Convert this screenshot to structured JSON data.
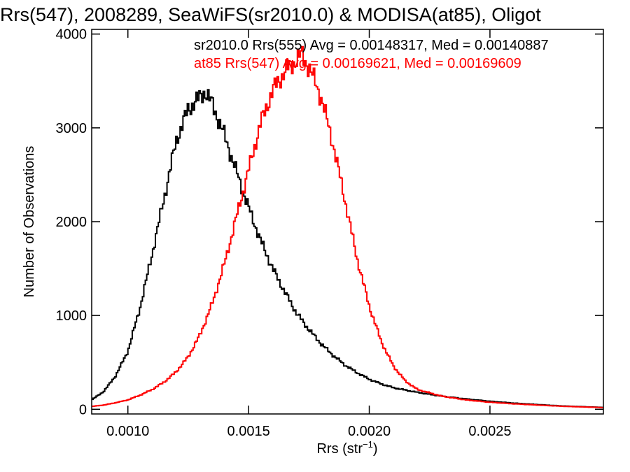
{
  "chart_data": {
    "type": "histogram",
    "title": "Rrs(547), 2008289, SeaWiFS(sr2010.0) & MODISA(at85), Oligot",
    "xlabel_main": "Rrs (str",
    "xlabel_sup": "−1",
    "xlabel_end": ")",
    "ylabel": "Number of Observations",
    "xlim": [
      0.00085,
      0.00297
    ],
    "ylim": [
      -50,
      4050
    ],
    "xticks": [
      {
        "v": 0.001,
        "label": "0.0010"
      },
      {
        "v": 0.0015,
        "label": "0.0015"
      },
      {
        "v": 0.002,
        "label": "0.0020"
      },
      {
        "v": 0.0025,
        "label": "0.0025"
      }
    ],
    "yticks": [
      {
        "v": 0,
        "label": "0"
      },
      {
        "v": 1000,
        "label": "1000"
      },
      {
        "v": 2000,
        "label": "2000"
      },
      {
        "v": 3000,
        "label": "3000"
      },
      {
        "v": 4000,
        "label": "4000"
      }
    ],
    "annotations": [
      {
        "text": "sr2010.0 Rrs(555) Avg = 0.00148317, Med = 0.00140887",
        "color": "#000000"
      },
      {
        "text": "at85 Rrs(547) Avg = 0.00169621, Med = 0.00169609",
        "color": "#ff0000"
      }
    ],
    "series": [
      {
        "color": "#000000",
        "points": [
          [
            0.00085,
            100
          ],
          [
            0.0009,
            190
          ],
          [
            0.00095,
            360
          ],
          [
            0.001,
            620
          ],
          [
            0.00105,
            1080
          ],
          [
            0.0011,
            1650
          ],
          [
            0.00115,
            2250
          ],
          [
            0.0012,
            2860
          ],
          [
            0.00125,
            3200
          ],
          [
            0.0013,
            3330
          ],
          [
            0.00132,
            3390
          ],
          [
            0.00135,
            3250
          ],
          [
            0.0014,
            2920
          ],
          [
            0.00145,
            2530
          ],
          [
            0.0015,
            2150
          ],
          [
            0.00155,
            1800
          ],
          [
            0.0016,
            1500
          ],
          [
            0.00165,
            1250
          ],
          [
            0.0017,
            1020
          ],
          [
            0.00175,
            850
          ],
          [
            0.0018,
            700
          ],
          [
            0.00185,
            575
          ],
          [
            0.0019,
            470
          ],
          [
            0.00195,
            390
          ],
          [
            0.002,
            320
          ],
          [
            0.00205,
            270
          ],
          [
            0.0021,
            230
          ],
          [
            0.0022,
            180
          ],
          [
            0.0023,
            140
          ],
          [
            0.0024,
            110
          ],
          [
            0.0025,
            85
          ],
          [
            0.0026,
            65
          ],
          [
            0.0027,
            50
          ],
          [
            0.0028,
            35
          ],
          [
            0.00297,
            20
          ]
        ]
      },
      {
        "color": "#ff0000",
        "points": [
          [
            0.00085,
            30
          ],
          [
            0.0009,
            45
          ],
          [
            0.00095,
            70
          ],
          [
            0.001,
            100
          ],
          [
            0.00105,
            150
          ],
          [
            0.0011,
            210
          ],
          [
            0.00115,
            290
          ],
          [
            0.0012,
            400
          ],
          [
            0.00125,
            560
          ],
          [
            0.0013,
            800
          ],
          [
            0.00135,
            1130
          ],
          [
            0.0014,
            1550
          ],
          [
            0.00145,
            2050
          ],
          [
            0.0015,
            2550
          ],
          [
            0.00155,
            3050
          ],
          [
            0.0016,
            3400
          ],
          [
            0.00165,
            3600
          ],
          [
            0.0017,
            3730
          ],
          [
            0.00172,
            3780
          ],
          [
            0.00175,
            3650
          ],
          [
            0.0018,
            3330
          ],
          [
            0.00185,
            2830
          ],
          [
            0.0019,
            2220
          ],
          [
            0.00195,
            1600
          ],
          [
            0.002,
            1100
          ],
          [
            0.00205,
            720
          ],
          [
            0.0021,
            460
          ],
          [
            0.00215,
            300
          ],
          [
            0.0022,
            210
          ],
          [
            0.0023,
            140
          ],
          [
            0.0024,
            100
          ],
          [
            0.0025,
            75
          ],
          [
            0.0026,
            58
          ],
          [
            0.0027,
            45
          ],
          [
            0.0028,
            32
          ],
          [
            0.00297,
            18
          ]
        ]
      }
    ]
  }
}
